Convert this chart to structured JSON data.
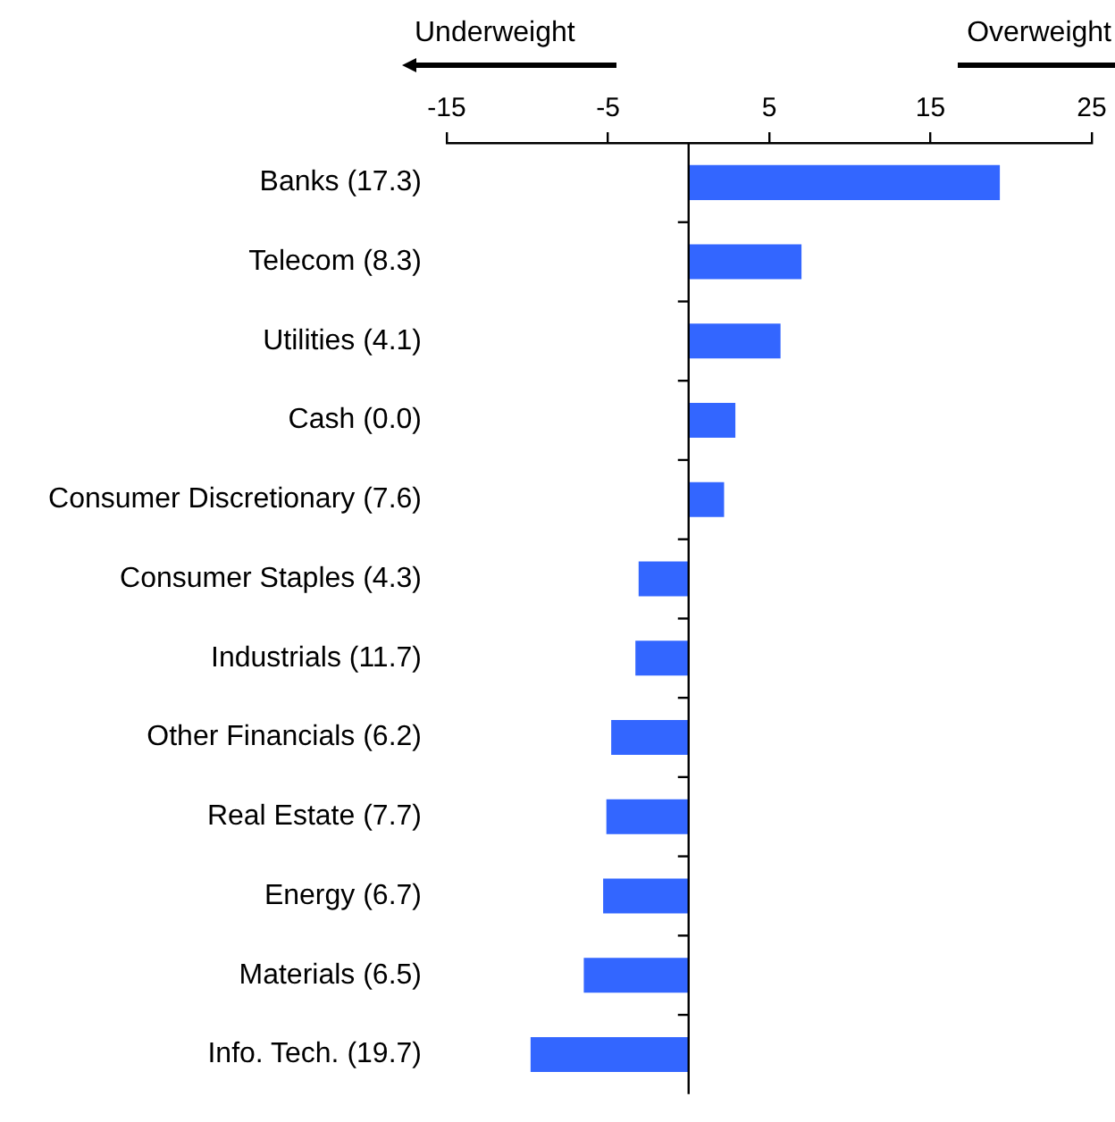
{
  "chart_data": {
    "type": "bar",
    "orientation": "horizontal",
    "categories": [
      "Banks (17.3)",
      "Telecom (8.3)",
      "Utilities (4.1)",
      "Cash (0.0)",
      "Consumer Discretionary (7.6)",
      "Consumer Staples (4.3)",
      "Industrials (11.7)",
      "Other Financials (6.2)",
      "Real Estate (7.7)",
      "Energy (6.7)",
      "Materials (6.5)",
      "Info. Tech. (19.7)"
    ],
    "values": [
      19.3,
      7.0,
      5.7,
      2.9,
      2.2,
      -3.1,
      -3.3,
      -4.8,
      -5.1,
      -5.3,
      -6.5,
      -9.8
    ],
    "color": "#3366ff",
    "xlim": [
      -15,
      25
    ],
    "xticks": [
      -15,
      -5,
      5,
      15,
      25
    ],
    "grid": false,
    "legend": false,
    "annotations": [
      "Underweight",
      "Overweight"
    ]
  }
}
